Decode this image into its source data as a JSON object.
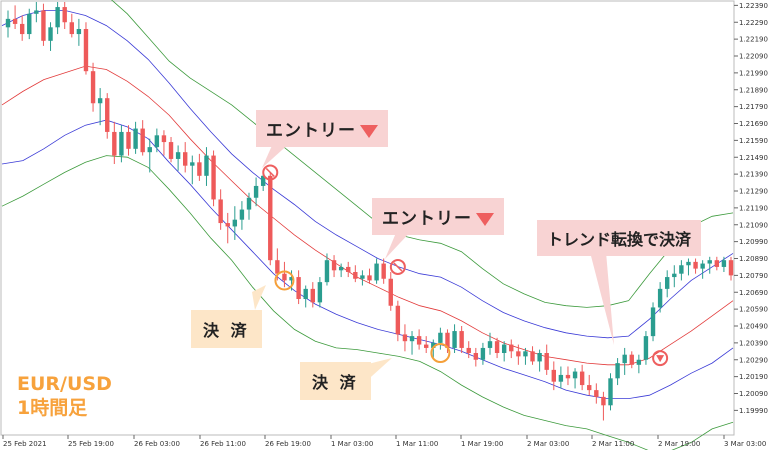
{
  "symbol": {
    "pair": "EUR/USD",
    "timeframe": "1時間足"
  },
  "annotations": {
    "entry_label": "エントリー",
    "settle_label": "決 済",
    "trend_label": "トレンド転換で決済"
  },
  "colors": {
    "bull_candle": "#2a9d8f",
    "bear_candle": "#ee5a5a",
    "outer_band": "#3c9a3c",
    "inner_band": "#3a3ad6",
    "middle_line": "#e23a3a",
    "entry_marker": "#ee5f5f",
    "settle_marker": "#f5a03a"
  },
  "chart_data": {
    "type": "candlestick",
    "ylim": [
      1.1985,
      1.2241
    ],
    "y_ticks": [
      "1.22390",
      "1.22290",
      "1.22190",
      "1.22090",
      "1.21990",
      "1.21890",
      "1.21790",
      "1.21690",
      "1.21590",
      "1.21490",
      "1.21390",
      "1.21290",
      "1.21190",
      "1.21090",
      "1.20990",
      "1.20890",
      "1.20790",
      "1.20690",
      "1.20590",
      "1.20490",
      "1.20390",
      "1.20290",
      "1.20190",
      "1.20090",
      "1.19990"
    ],
    "x_labels": [
      "25 Feb 2021",
      "25 Feb 19:00",
      "26 Feb 03:00",
      "26 Feb 11:00",
      "26 Feb 19:00",
      "1 Mar 03:00",
      "1 Mar 11:00",
      "1 Mar 19:00",
      "2 Mar 03:00",
      "2 Mar 11:00",
      "2 Mar 19:00",
      "3 Mar 03:00"
    ],
    "candles": [
      [
        1.2226,
        1.2236,
        1.222,
        1.2231
      ],
      [
        1.2231,
        1.2239,
        1.2225,
        1.2228
      ],
      [
        1.2228,
        1.2233,
        1.2218,
        1.2222
      ],
      [
        1.2222,
        1.2237,
        1.2219,
        1.2234
      ],
      [
        1.2234,
        1.2241,
        1.2229,
        1.2236
      ],
      [
        1.2236,
        1.224,
        1.2215,
        1.2218
      ],
      [
        1.2218,
        1.2229,
        1.2212,
        1.2226
      ],
      [
        1.2226,
        1.2241,
        1.2222,
        1.2238
      ],
      [
        1.2238,
        1.2241,
        1.2225,
        1.2229
      ],
      [
        1.2229,
        1.2234,
        1.222,
        1.2222
      ],
      [
        1.2222,
        1.2231,
        1.2215,
        1.2225
      ],
      [
        1.2225,
        1.2229,
        1.2198,
        1.22
      ],
      [
        1.22,
        1.2205,
        1.2176,
        1.2181
      ],
      [
        1.2181,
        1.219,
        1.2168,
        1.2184
      ],
      [
        1.2184,
        1.2187,
        1.216,
        1.2164
      ],
      [
        1.2164,
        1.217,
        1.2145,
        1.215
      ],
      [
        1.215,
        1.2168,
        1.2146,
        1.2164
      ],
      [
        1.2164,
        1.2168,
        1.215,
        1.2154
      ],
      [
        1.2154,
        1.217,
        1.2151,
        1.2166
      ],
      [
        1.2166,
        1.2171,
        1.215,
        1.2152
      ],
      [
        1.2152,
        1.216,
        1.214,
        1.2155
      ],
      [
        1.2155,
        1.2166,
        1.2152,
        1.2162
      ],
      [
        1.2162,
        1.2165,
        1.215,
        1.2158
      ],
      [
        1.2158,
        1.2161,
        1.2146,
        1.2148
      ],
      [
        1.2148,
        1.2156,
        1.2141,
        1.2152
      ],
      [
        1.2152,
        1.2158,
        1.214,
        1.2144
      ],
      [
        1.2144,
        1.215,
        1.2133,
        1.2146
      ],
      [
        1.2146,
        1.2151,
        1.2135,
        1.2138
      ],
      [
        1.2138,
        1.2155,
        1.2132,
        1.215
      ],
      [
        1.215,
        1.2153,
        1.212,
        1.2124
      ],
      [
        1.2124,
        1.213,
        1.2106,
        1.211
      ],
      [
        1.211,
        1.2116,
        1.2098,
        1.2108
      ],
      [
        1.2108,
        1.212,
        1.21,
        1.2112
      ],
      [
        1.2112,
        1.2123,
        1.2106,
        1.2118
      ],
      [
        1.2118,
        1.2128,
        1.2112,
        1.2125
      ],
      [
        1.2125,
        1.2137,
        1.212,
        1.2132
      ],
      [
        1.2132,
        1.214,
        1.2129,
        1.2138
      ],
      [
        1.2138,
        1.214,
        1.2085,
        1.2088
      ],
      [
        1.2088,
        1.2095,
        1.2076,
        1.208
      ],
      [
        1.208,
        1.2087,
        1.2072,
        1.2076
      ],
      [
        1.2076,
        1.2082,
        1.207,
        1.2078
      ],
      [
        1.2078,
        1.2082,
        1.2062,
        1.2065
      ],
      [
        1.2065,
        1.2073,
        1.206,
        1.2071
      ],
      [
        1.2071,
        1.2075,
        1.206,
        1.2063
      ],
      [
        1.2063,
        1.2078,
        1.206,
        1.2075
      ],
      [
        1.2075,
        1.2092,
        1.2073,
        1.2088
      ],
      [
        1.2088,
        1.2091,
        1.2078,
        1.2082
      ],
      [
        1.2082,
        1.2086,
        1.2078,
        1.2084
      ],
      [
        1.2084,
        1.2087,
        1.2078,
        1.2081
      ],
      [
        1.2081,
        1.2085,
        1.2075,
        1.2077
      ],
      [
        1.2077,
        1.2082,
        1.2073,
        1.2079
      ],
      [
        1.2079,
        1.2083,
        1.2074,
        1.2076
      ],
      [
        1.2076,
        1.2089,
        1.2074,
        1.2086
      ],
      [
        1.2086,
        1.2089,
        1.2074,
        1.2077
      ],
      [
        1.2077,
        1.2081,
        1.2058,
        1.2061
      ],
      [
        1.2061,
        1.2064,
        1.204,
        1.2044
      ],
      [
        1.2044,
        1.205,
        1.2034,
        1.204
      ],
      [
        1.204,
        1.2046,
        1.2032,
        1.2043
      ],
      [
        1.2043,
        1.2047,
        1.2035,
        1.2038
      ],
      [
        1.2038,
        1.2043,
        1.2033,
        1.2036
      ],
      [
        1.2036,
        1.2041,
        1.203,
        1.2039
      ],
      [
        1.2039,
        1.2048,
        1.2035,
        1.2045
      ],
      [
        1.2045,
        1.2047,
        1.2033,
        1.2036
      ],
      [
        1.2036,
        1.205,
        1.2033,
        1.2046
      ],
      [
        1.2046,
        1.2049,
        1.2033,
        1.2036
      ],
      [
        1.2036,
        1.204,
        1.203,
        1.2033
      ],
      [
        1.2033,
        1.2036,
        1.2025,
        1.2029
      ],
      [
        1.2029,
        1.2039,
        1.2026,
        1.2036
      ],
      [
        1.2036,
        1.2045,
        1.2032,
        1.204
      ],
      [
        1.204,
        1.2042,
        1.203,
        1.2033
      ],
      [
        1.2033,
        1.204,
        1.2028,
        1.2038
      ],
      [
        1.2038,
        1.2041,
        1.203,
        1.2034
      ],
      [
        1.2034,
        1.2038,
        1.2026,
        1.2031
      ],
      [
        1.2031,
        1.2036,
        1.2026,
        1.2034
      ],
      [
        1.2034,
        1.2037,
        1.2026,
        1.2028
      ],
      [
        1.2028,
        1.2035,
        1.2022,
        1.2033
      ],
      [
        1.2033,
        1.2038,
        1.202,
        1.2023
      ],
      [
        1.2023,
        1.2028,
        1.2011,
        1.2016
      ],
      [
        1.2016,
        1.2025,
        1.2012,
        1.202
      ],
      [
        1.202,
        1.2025,
        1.2014,
        1.2018
      ],
      [
        1.2018,
        1.2024,
        1.2012,
        1.2022
      ],
      [
        1.2022,
        1.2026,
        1.2011,
        1.2014
      ],
      [
        1.2014,
        1.202,
        1.2008,
        1.2011
      ],
      [
        1.2011,
        1.2015,
        1.2003,
        1.2007
      ],
      [
        1.2007,
        1.201,
        1.1993,
        1.2002
      ],
      [
        1.2002,
        1.2021,
        1.1999,
        1.2018
      ],
      [
        1.2018,
        1.203,
        1.2014,
        1.2027
      ],
      [
        1.2027,
        1.2036,
        1.202,
        1.2032
      ],
      [
        1.2032,
        1.2034,
        1.2024,
        1.2026
      ],
      [
        1.2026,
        1.2032,
        1.2021,
        1.2029
      ],
      [
        1.2029,
        1.2046,
        1.2026,
        1.2043
      ],
      [
        1.2043,
        1.2063,
        1.204,
        1.206
      ],
      [
        1.206,
        1.2075,
        1.2057,
        1.2071
      ],
      [
        1.2071,
        1.2082,
        1.2066,
        1.2078
      ],
      [
        1.2078,
        1.2085,
        1.2072,
        1.208
      ],
      [
        1.208,
        1.2088,
        1.2076,
        1.2085
      ],
      [
        1.2085,
        1.2089,
        1.2079,
        1.2087
      ],
      [
        1.2087,
        1.2089,
        1.208,
        1.2083
      ],
      [
        1.2083,
        1.2088,
        1.2077,
        1.2086
      ],
      [
        1.2086,
        1.209,
        1.208,
        1.2088
      ],
      [
        1.2088,
        1.209,
        1.2082,
        1.2084
      ],
      [
        1.2084,
        1.209,
        1.2081,
        1.2088
      ],
      [
        1.2088,
        1.209,
        1.2076,
        1.2079
      ]
    ],
    "bands": {
      "outer_upper": [
        1.2268,
        1.2265,
        1.2262,
        1.2258,
        1.2252,
        1.2245,
        1.2234,
        1.222,
        1.2206,
        1.2196,
        1.2188,
        1.218,
        1.217,
        1.216,
        1.215,
        1.214,
        1.213,
        1.212,
        1.211,
        1.2103,
        1.21,
        1.2098,
        1.2093,
        1.2083,
        1.2074,
        1.2068,
        1.2063,
        1.2061,
        1.206,
        1.2061,
        1.2064,
        1.208,
        1.2095,
        1.2108,
        1.2114,
        1.2116
      ],
      "inner_upper": [
        1.2227,
        1.2233,
        1.2236,
        1.2236,
        1.2233,
        1.2227,
        1.2218,
        1.2207,
        1.2193,
        1.2178,
        1.2164,
        1.2151,
        1.214,
        1.213,
        1.2121,
        1.2111,
        1.2103,
        1.2096,
        1.2089,
        1.2084,
        1.208,
        1.2078,
        1.2072,
        1.2064,
        1.2057,
        1.2052,
        1.2048,
        1.2045,
        1.2043,
        1.2042,
        1.2043,
        1.2053,
        1.2065,
        1.2076,
        1.2084,
        1.2092
      ],
      "middle": [
        1.218,
        1.2188,
        1.2195,
        1.2199,
        1.2203,
        1.2201,
        1.2194,
        1.2185,
        1.2174,
        1.216,
        1.2147,
        1.2135,
        1.2123,
        1.2113,
        1.2103,
        1.2094,
        1.2086,
        1.2078,
        1.2072,
        1.2066,
        1.2061,
        1.2058,
        1.2052,
        1.2045,
        1.2039,
        1.2035,
        1.2031,
        1.2029,
        1.2027,
        1.2026,
        1.2026,
        1.203,
        1.2038,
        1.2046,
        1.2055,
        1.2064
      ],
      "inner_lower": [
        1.2145,
        1.2147,
        1.2154,
        1.2162,
        1.2168,
        1.2171,
        1.2167,
        1.216,
        1.2146,
        1.2133,
        1.2119,
        1.2106,
        1.2093,
        1.208,
        1.207,
        1.2062,
        1.2056,
        1.2051,
        1.2047,
        1.2044,
        1.2041,
        1.2038,
        1.2034,
        1.2029,
        1.2024,
        1.202,
        1.2016,
        1.2011,
        1.2008,
        1.2006,
        1.2006,
        1.2008,
        1.2014,
        1.2021,
        1.2027,
        1.2036
      ],
      "outer_lower": [
        1.212,
        1.2126,
        1.2133,
        1.214,
        1.2146,
        1.215,
        1.2149,
        1.2143,
        1.213,
        1.2116,
        1.2101,
        1.2088,
        1.2072,
        1.2058,
        1.2047,
        1.204,
        1.2036,
        1.2035,
        1.2033,
        1.2031,
        1.2028,
        1.2022,
        1.2014,
        1.2007,
        1.2001,
        1.1996,
        1.1993,
        1.199,
        1.1988,
        1.1984,
        1.198,
        1.1975,
        1.1975,
        1.198,
        1.1988,
        1.1992
      ]
    },
    "entry_markers": [
      {
        "candle": 37,
        "price": 1.214
      },
      {
        "candle": 55,
        "price": 1.2084
      }
    ],
    "settle_markers": [
      {
        "candle": 39,
        "price": 1.2076
      },
      {
        "candle": 61,
        "price": 1.2033
      }
    ],
    "exit_marker": {
      "candle": 92,
      "price": 1.203
    }
  }
}
